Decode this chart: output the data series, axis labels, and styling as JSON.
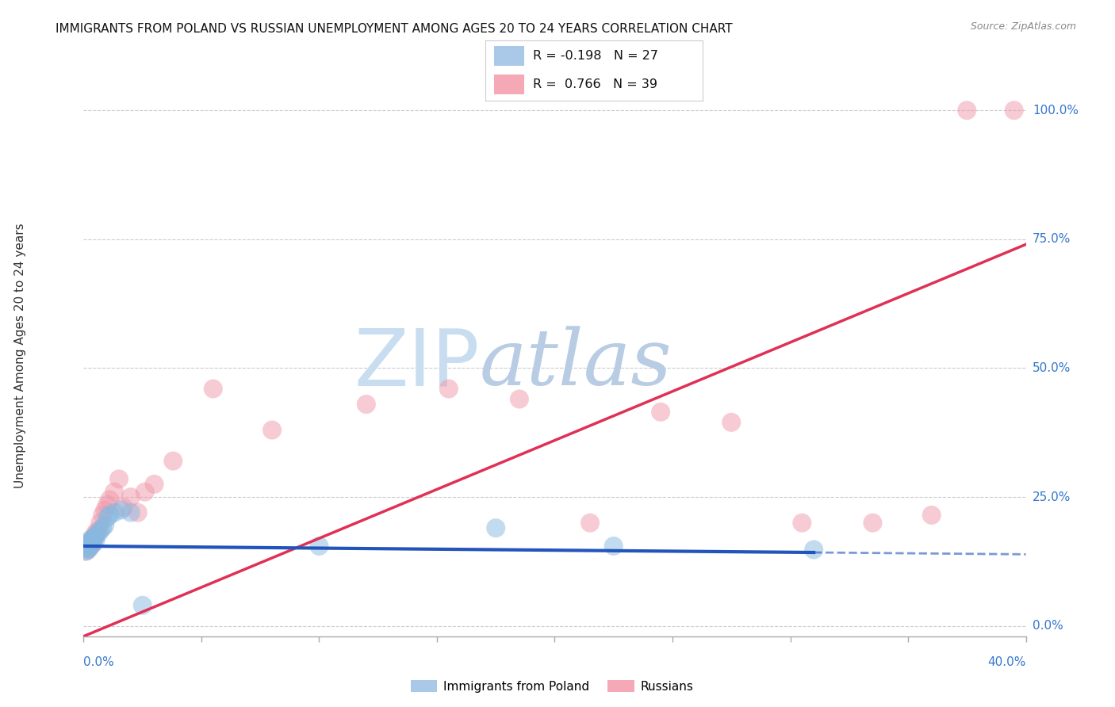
{
  "title": "IMMIGRANTS FROM POLAND VS RUSSIAN UNEMPLOYMENT AMONG AGES 20 TO 24 YEARS CORRELATION CHART",
  "source": "Source: ZipAtlas.com",
  "ylabel": "Unemployment Among Ages 20 to 24 years",
  "ytick_labels": [
    "0.0%",
    "25.0%",
    "50.0%",
    "75.0%",
    "100.0%"
  ],
  "ytick_vals": [
    0.0,
    0.25,
    0.5,
    0.75,
    1.0
  ],
  "xtick_vals": [
    0.0,
    0.05,
    0.1,
    0.15,
    0.2,
    0.25,
    0.3,
    0.35,
    0.4
  ],
  "xlim": [
    0.0,
    0.4
  ],
  "ylim": [
    -0.02,
    1.07
  ],
  "blue_scatter_color": "#88b8e0",
  "pink_scatter_color": "#f098aa",
  "trend_blue_color": "#2255bb",
  "trend_pink_color": "#e03055",
  "grid_color": "#cccccc",
  "background_color": "#ffffff",
  "watermark_zip": "ZIP",
  "watermark_atlas": "atlas",
  "watermark_color": "#d8e8f4",
  "legend_blue_color": "#aac8e8",
  "legend_pink_color": "#f5a8b5",
  "poland_x": [
    0.001,
    0.001,
    0.001,
    0.002,
    0.002,
    0.002,
    0.003,
    0.003,
    0.003,
    0.004,
    0.004,
    0.005,
    0.005,
    0.006,
    0.007,
    0.008,
    0.009,
    0.01,
    0.011,
    0.013,
    0.016,
    0.02,
    0.025,
    0.1,
    0.175,
    0.225,
    0.31
  ],
  "poland_y": [
    0.15,
    0.145,
    0.155,
    0.148,
    0.152,
    0.16,
    0.155,
    0.162,
    0.168,
    0.16,
    0.17,
    0.165,
    0.175,
    0.178,
    0.185,
    0.19,
    0.195,
    0.21,
    0.215,
    0.22,
    0.225,
    0.22,
    0.04,
    0.155,
    0.19,
    0.155,
    0.148
  ],
  "russian_x": [
    0.001,
    0.001,
    0.002,
    0.002,
    0.003,
    0.003,
    0.004,
    0.004,
    0.005,
    0.005,
    0.006,
    0.007,
    0.008,
    0.009,
    0.01,
    0.011,
    0.013,
    0.015,
    0.017,
    0.02,
    0.023,
    0.026,
    0.03,
    0.038,
    0.055,
    0.08,
    0.12,
    0.155,
    0.185,
    0.215,
    0.245,
    0.275,
    0.305,
    0.335,
    0.36,
    0.375,
    0.395
  ],
  "russian_y": [
    0.145,
    0.155,
    0.15,
    0.16,
    0.155,
    0.165,
    0.16,
    0.17,
    0.175,
    0.18,
    0.185,
    0.2,
    0.215,
    0.225,
    0.235,
    0.245,
    0.26,
    0.285,
    0.23,
    0.25,
    0.22,
    0.26,
    0.275,
    0.32,
    0.46,
    0.38,
    0.43,
    0.46,
    0.44,
    0.2,
    0.415,
    0.395,
    0.2,
    0.2,
    0.215,
    1.0,
    1.0
  ],
  "blue_trend_intercept": 0.155,
  "blue_trend_slope": -0.04,
  "pink_trend_intercept": -0.02,
  "pink_trend_slope": 1.9
}
